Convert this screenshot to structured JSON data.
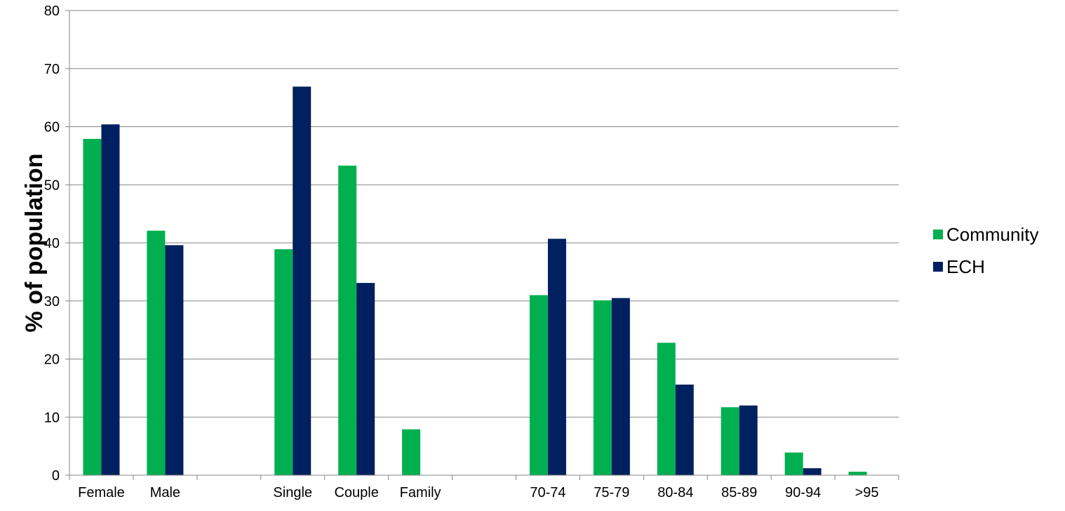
{
  "chart_data": {
    "type": "bar",
    "title": "",
    "xlabel": "",
    "ylabel": "% of population",
    "ylim": [
      0,
      80
    ],
    "yticks": [
      0,
      10,
      20,
      30,
      40,
      50,
      60,
      70,
      80
    ],
    "grid": true,
    "legend_position": "right",
    "categories": [
      "Female",
      "Male",
      "",
      "Single",
      "Couple",
      "Family",
      "",
      "70-74",
      "75-79",
      "80-84",
      "85-89",
      "90-94",
      ">95"
    ],
    "series": [
      {
        "name": "Community",
        "color": "#00b050",
        "values": [
          57.9,
          42.1,
          null,
          38.9,
          53.3,
          7.9,
          null,
          31.0,
          30.1,
          22.8,
          11.7,
          3.9,
          0.6
        ]
      },
      {
        "name": "ECH",
        "color": "#002060",
        "values": [
          60.4,
          39.6,
          null,
          66.9,
          33.1,
          0,
          null,
          40.7,
          30.5,
          15.6,
          12.0,
          1.2,
          0
        ]
      }
    ]
  }
}
